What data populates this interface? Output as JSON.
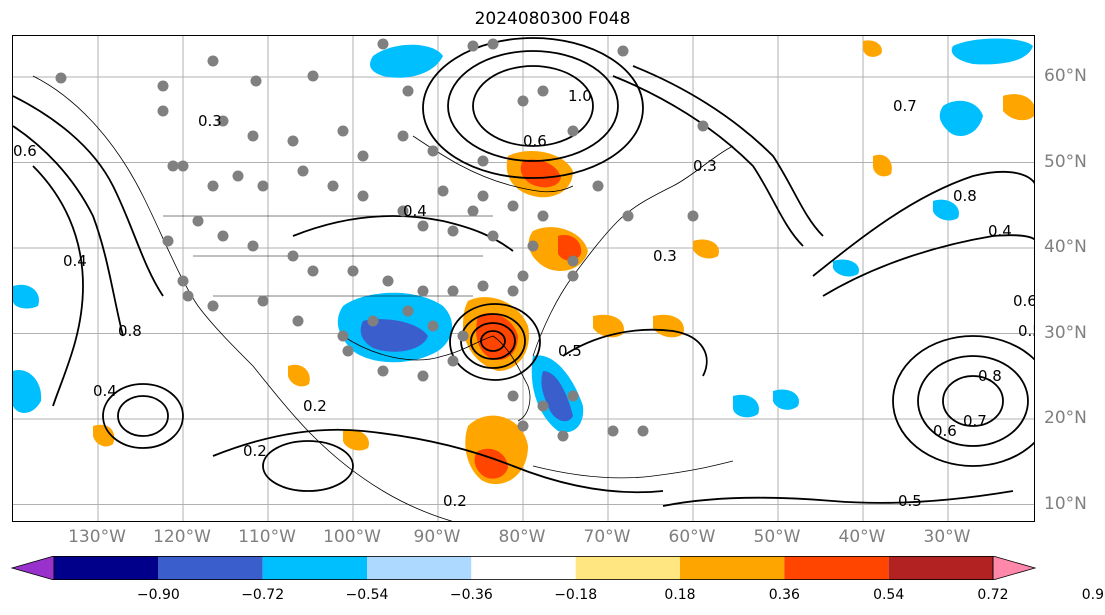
{
  "title": "2024080300 F048",
  "map": {
    "lon_labels": [
      {
        "text": "130°W",
        "lon": -130
      },
      {
        "text": "120°W",
        "lon": -120
      },
      {
        "text": "110°W",
        "lon": -110
      },
      {
        "text": "100°W",
        "lon": -100
      },
      {
        "text": "90°W",
        "lon": -90
      },
      {
        "text": "80°W",
        "lon": -80
      },
      {
        "text": "70°W",
        "lon": -70
      },
      {
        "text": "60°W",
        "lon": -60
      },
      {
        "text": "50°W",
        "lon": -50
      },
      {
        "text": "40°W",
        "lon": -40
      },
      {
        "text": "30°W",
        "lon": -30
      }
    ],
    "lat_labels": [
      {
        "text": "60°N",
        "lat": 60
      },
      {
        "text": "50°N",
        "lat": 50
      },
      {
        "text": "40°N",
        "lat": 40
      },
      {
        "text": "30°N",
        "lat": 30
      },
      {
        "text": "20°N",
        "lat": 20
      },
      {
        "text": "10°N",
        "lat": 10
      }
    ],
    "contour_labels": [
      "0.3",
      "0.4",
      "0.6",
      "0.2",
      "0.5",
      "0.8",
      "1.0",
      "0.7",
      "0.4",
      "0.3",
      "0.2",
      "0.6",
      "0.5",
      "0.2",
      "0.3",
      "0.8",
      "0.4",
      "0.6",
      "0.5",
      "0.8",
      "0.7",
      "0.6",
      "0.4"
    ],
    "colors": {
      "contour": "#000000",
      "coast": "#000000",
      "grid": "#b0b0b0",
      "station": "#808080",
      "label": "#7f7f7f"
    }
  },
  "colorbar": {
    "ticks": [
      "−0.90",
      "−0.72",
      "−0.54",
      "−0.36",
      "−0.18",
      "0.18",
      "0.36",
      "0.54",
      "0.72",
      "0.90"
    ],
    "colors": [
      "#9932cc",
      "#00008b",
      "#3a5fcd",
      "#00bfff",
      "#add8ff",
      "#ffffff",
      "#ffe680",
      "#ffa500",
      "#ff4500",
      "#b22222",
      "#ff88aa"
    ]
  }
}
